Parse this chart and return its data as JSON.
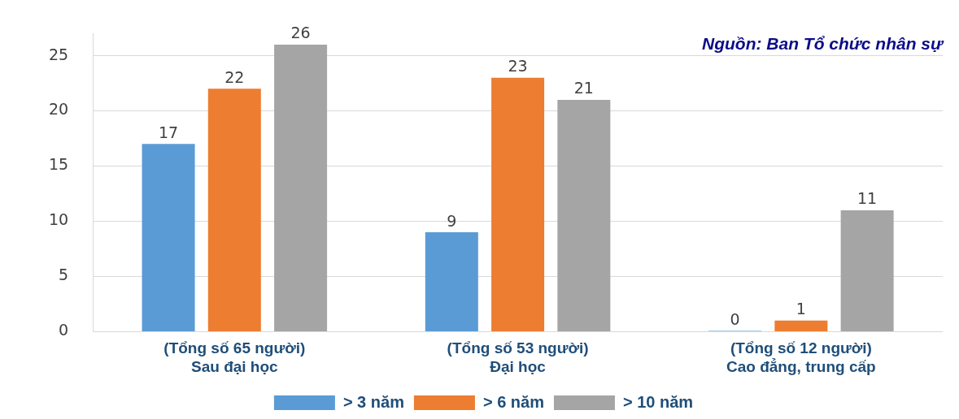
{
  "chart_data": {
    "type": "bar",
    "categories": [
      "(Tổng số 65 người)\nSau đại học",
      "(Tổng số 53 người)\nĐại học",
      "(Tổng số 12 người)\nCao đẳng, trung cấp"
    ],
    "series": [
      {
        "name": "> 3 năm",
        "color": "#5b9bd5",
        "values": [
          17,
          9,
          0
        ]
      },
      {
        "name": "> 6 năm",
        "color": "#ed7d31",
        "values": [
          22,
          23,
          1
        ]
      },
      {
        "name": "> 10 năm",
        "color": "#a5a5a5",
        "values": [
          26,
          21,
          11
        ]
      }
    ],
    "ylim": [
      0,
      27
    ],
    "yticks": [
      0,
      5,
      10,
      15,
      20,
      25
    ],
    "grid": "y",
    "legend": "bottom",
    "data_labels": true,
    "annotations": [
      "Nguồn: Ban Tổ chức nhân sự"
    ]
  }
}
